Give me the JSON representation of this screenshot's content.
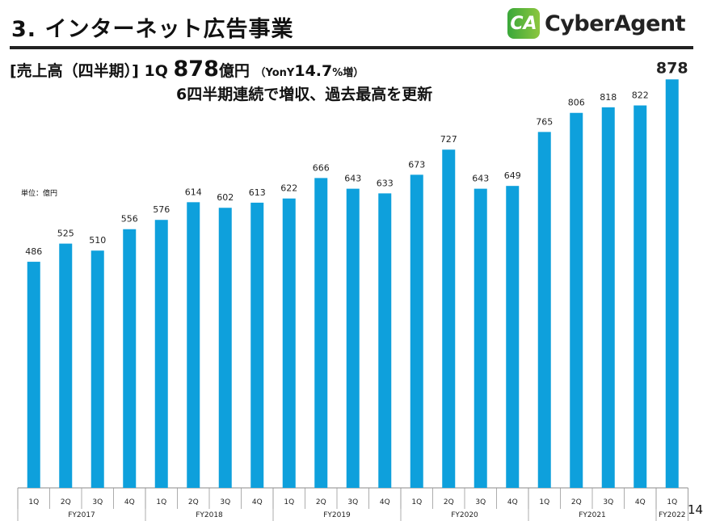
{
  "header": {
    "title": "3. インターネット広告事業",
    "logo_mark": "CA",
    "logo_text": "CyberAgent"
  },
  "headline": {
    "label": "[売上高（四半期）]",
    "quarter": "1Q",
    "value": "878",
    "unit": "億円",
    "yoy_open": "（YonY",
    "yoy_value": "14.7",
    "yoy_close": "%増）",
    "line2": "6四半期連続で増収、過去最高を更新"
  },
  "unit_label": "単位：億円",
  "page_number": "14",
  "colors": {
    "bar": "#0ea0dc"
  },
  "chart_data": {
    "type": "bar",
    "categories": [
      "1Q",
      "2Q",
      "3Q",
      "4Q",
      "1Q",
      "2Q",
      "3Q",
      "4Q",
      "1Q",
      "2Q",
      "3Q",
      "4Q",
      "1Q",
      "2Q",
      "3Q",
      "4Q",
      "1Q",
      "2Q",
      "3Q",
      "4Q",
      "1Q"
    ],
    "groups": [
      {
        "label": "FY2017",
        "count": 4
      },
      {
        "label": "FY2018",
        "count": 4
      },
      {
        "label": "FY2019",
        "count": 4
      },
      {
        "label": "FY2020",
        "count": 4
      },
      {
        "label": "FY2021",
        "count": 4
      },
      {
        "label": "FY2022",
        "count": 1
      }
    ],
    "values": [
      486,
      525,
      510,
      556,
      576,
      614,
      602,
      613,
      622,
      666,
      643,
      633,
      673,
      727,
      643,
      649,
      765,
      806,
      818,
      822,
      878
    ],
    "ylim": [
      0,
      900
    ],
    "grid": false,
    "legend": "none"
  }
}
